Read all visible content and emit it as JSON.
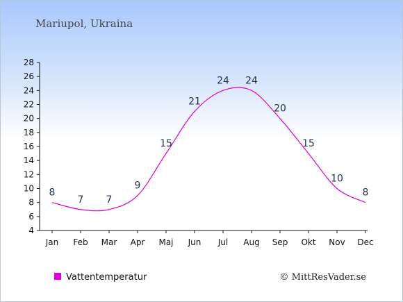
{
  "title": "Mariupol, Ukraina",
  "legend": {
    "label": "Vattentemperatur",
    "color": "#dd00dd"
  },
  "copyright": "© MittResVader.se",
  "chart_data": {
    "type": "line",
    "title": "Mariupol, Ukraina",
    "categories": [
      "Jan",
      "Feb",
      "Mar",
      "Apr",
      "Maj",
      "Jun",
      "Jul",
      "Aug",
      "Sep",
      "Okt",
      "Nov",
      "Dec"
    ],
    "series": [
      {
        "name": "Vattentemperatur",
        "values": [
          8,
          7,
          7,
          9,
          15,
          21,
          24,
          24,
          20,
          15,
          10,
          8
        ],
        "color": "#dd00dd"
      }
    ],
    "yticks": [
      4,
      6,
      8,
      10,
      12,
      14,
      16,
      18,
      20,
      22,
      24,
      26,
      28
    ],
    "ylim": [
      4,
      28
    ],
    "grid": false,
    "legend_position": "bottom-left"
  }
}
